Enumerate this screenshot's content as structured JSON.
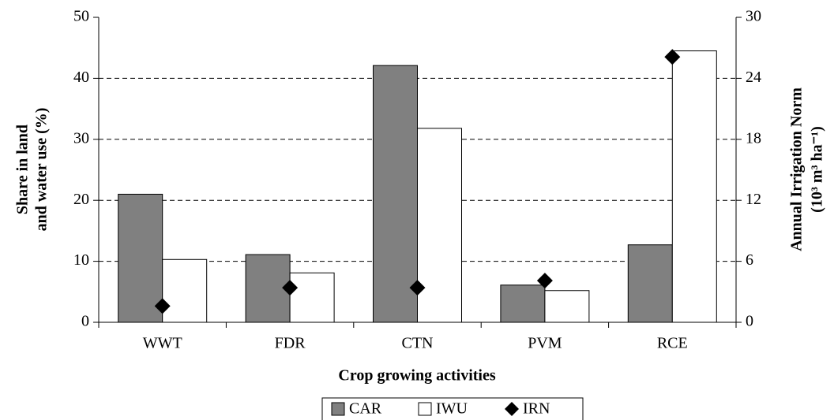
{
  "chart_data": {
    "type": "bar",
    "x_label": "Crop growing activities",
    "y_label": [
      "Share in land",
      "and water use (%)"
    ],
    "y2_label": [
      "Annual Irrigation Norm",
      "(10³ m³ ha⁻¹)"
    ],
    "categories": [
      "WWT",
      "FDR",
      "CTN",
      "PVM",
      "RCE"
    ],
    "series": [
      {
        "name": "CAR",
        "color": "#808080",
        "marker": "bar",
        "values": [
          21,
          11.1,
          42.1,
          6.1,
          12.7
        ]
      },
      {
        "name": "IWU",
        "color": "#ffffff",
        "marker": "bar",
        "values": [
          10.3,
          8.1,
          31.8,
          5.2,
          44.5
        ]
      },
      {
        "name": "IRN",
        "color": "#000000",
        "marker": "diamond",
        "axis": "y2",
        "values": [
          1.6,
          3.4,
          3.4,
          4.1,
          26.1
        ]
      }
    ],
    "ylim": [
      0,
      50
    ],
    "yticks": [
      0,
      10,
      20,
      30,
      40,
      50
    ],
    "y2lim": [
      0,
      30
    ],
    "y2ticks": [
      0,
      6,
      12,
      18,
      24,
      30
    ],
    "grid": true,
    "legend": "bottom"
  }
}
